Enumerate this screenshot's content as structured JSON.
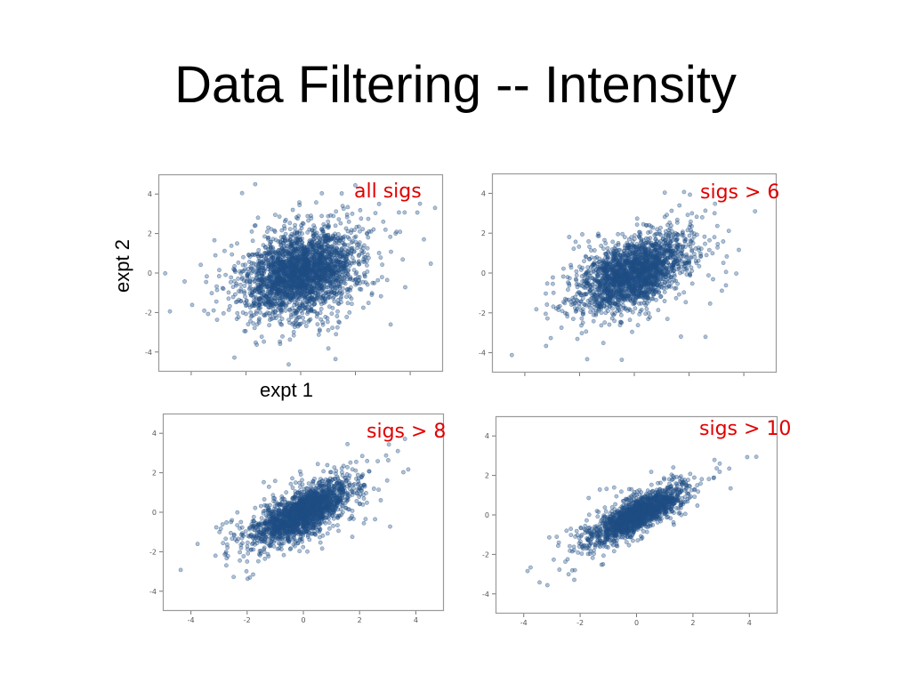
{
  "slide": {
    "title": "Data Filtering -- Intensity"
  },
  "chart_data": [
    {
      "type": "scatter",
      "annotation": "all sigs",
      "xlabel": "expt 1",
      "ylabel": "expt 2",
      "yticks": [
        4,
        2,
        0,
        -2,
        -4
      ],
      "xticks": [],
      "xlim": [
        -5.2,
        5.2
      ],
      "ylim": [
        -5,
        5
      ],
      "distribution": {
        "n_points": 2600,
        "center": [
          0,
          0
        ],
        "sd_x": 1.0,
        "sd_y": 1.05,
        "correlation": 0.3
      },
      "color": "#1f4e85"
    },
    {
      "type": "scatter",
      "annotation": "sigs > 6",
      "xlabel": "",
      "ylabel": "",
      "yticks": [
        4,
        2,
        0,
        -2,
        -4
      ],
      "xticks": [],
      "xlim": [
        -5.2,
        5.2
      ],
      "ylim": [
        -5,
        5
      ],
      "distribution": {
        "n_points": 2200,
        "center": [
          0,
          0
        ],
        "sd_x": 0.95,
        "sd_y": 0.9,
        "correlation": 0.5
      },
      "color": "#1f4e85"
    },
    {
      "type": "scatter",
      "annotation": "sigs > 8",
      "xlabel": "",
      "ylabel": "",
      "yticks": [
        4,
        2,
        0,
        -2,
        -4
      ],
      "xticks": [
        -4,
        -2,
        0,
        2,
        4
      ],
      "xlim": [
        -5,
        5
      ],
      "ylim": [
        -5,
        5
      ],
      "distribution": {
        "n_points": 2000,
        "center": [
          0,
          0
        ],
        "sd_x": 0.85,
        "sd_y": 0.8,
        "correlation": 0.7
      },
      "color": "#1f4e85"
    },
    {
      "type": "scatter",
      "annotation": "sigs > 10",
      "xlabel": "",
      "ylabel": "",
      "yticks": [
        4,
        2,
        0,
        -2,
        -4
      ],
      "xticks": [
        -4,
        -2,
        0,
        2,
        4
      ],
      "xlim": [
        -5,
        5
      ],
      "ylim": [
        -5,
        5
      ],
      "distribution": {
        "n_points": 1700,
        "center": [
          0,
          0
        ],
        "sd_x": 0.8,
        "sd_y": 0.7,
        "correlation": 0.8
      },
      "color": "#1f4e85"
    }
  ]
}
